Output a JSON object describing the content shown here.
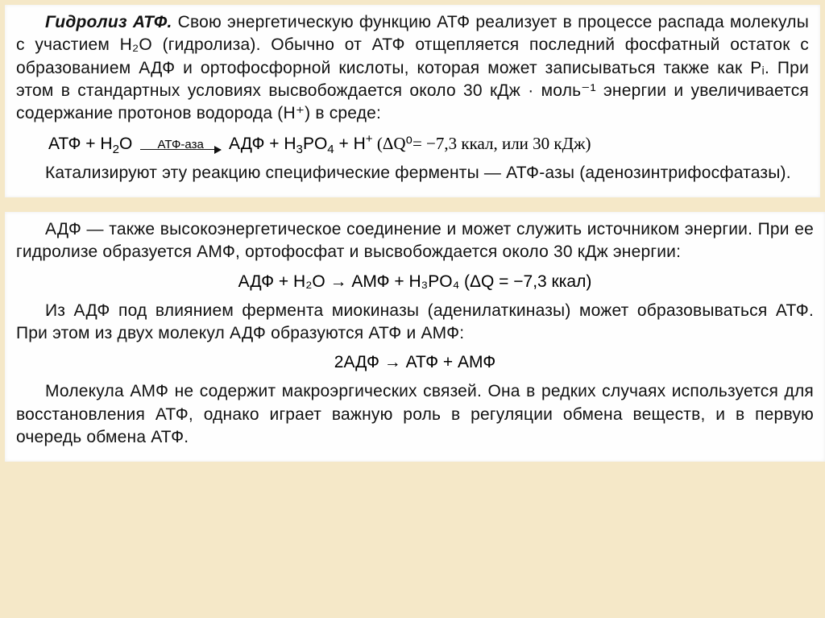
{
  "block1": {
    "heading": "Гидролиз АТФ.",
    "p1": " Свою энергетическую функцию АТФ реализует в процессе распада молекулы с участием H₂O (гидролиза). Обычно от АТФ отщепляется последний фосфатный остаток с образованием АДФ и ортофосфорной кислоты, которая может записываться также как Pᵢ. При этом в стандартных условиях высвобождается около 30 кДж · моль⁻¹ энергии и увеличивается содержание протонов водорода (H⁺) в среде:",
    "eq1_left": "АТФ + H",
    "eq1_sub1": "2",
    "eq1_o": "O",
    "eq1_label": "АТФ-аза",
    "eq1_right_a": " АДФ + H",
    "eq1_sub2": "3",
    "eq1_po": "PO",
    "eq1_sub3": "4",
    "eq1_right_b": " + H",
    "eq1_sup1": "+",
    "eq1_delta": " (ΔQ⁰= −7,3 ккал, или 30 кДж)",
    "p2": "Катализируют эту реакцию специфические ферменты — АТФ-азы (аденозинтрифосфатазы)."
  },
  "block2": {
    "p1": "АДФ — также высокоэнергетическое соединение и может служить источником энергии. При ее гидролизе образуется АМФ, ортофосфат и высвобождается около 30 кДж энергии:",
    "eq2": "АДФ + H₂O → АМФ + H₃PO₄ (ΔQ = −7,3 ккал)",
    "p2": "Из АДФ под влиянием фермента миокиназы (аденилаткиназы) может образовываться АТФ. При этом из двух молекул АДФ образуются АТФ и АМФ:",
    "eq3": "2АДФ → АТФ + АМФ",
    "p3": "Молекула АМФ не содержит макроэргических связей. Она в редких случаях используется для восстановления АТФ, однако играет важную роль в регуляции обмена веществ, и в первую очередь обмена АТФ."
  },
  "style": {
    "bg": "#f5e8c8",
    "paper": "#fefefe",
    "text": "#111",
    "fontsize_body": 21,
    "fontsize_label": 15
  }
}
